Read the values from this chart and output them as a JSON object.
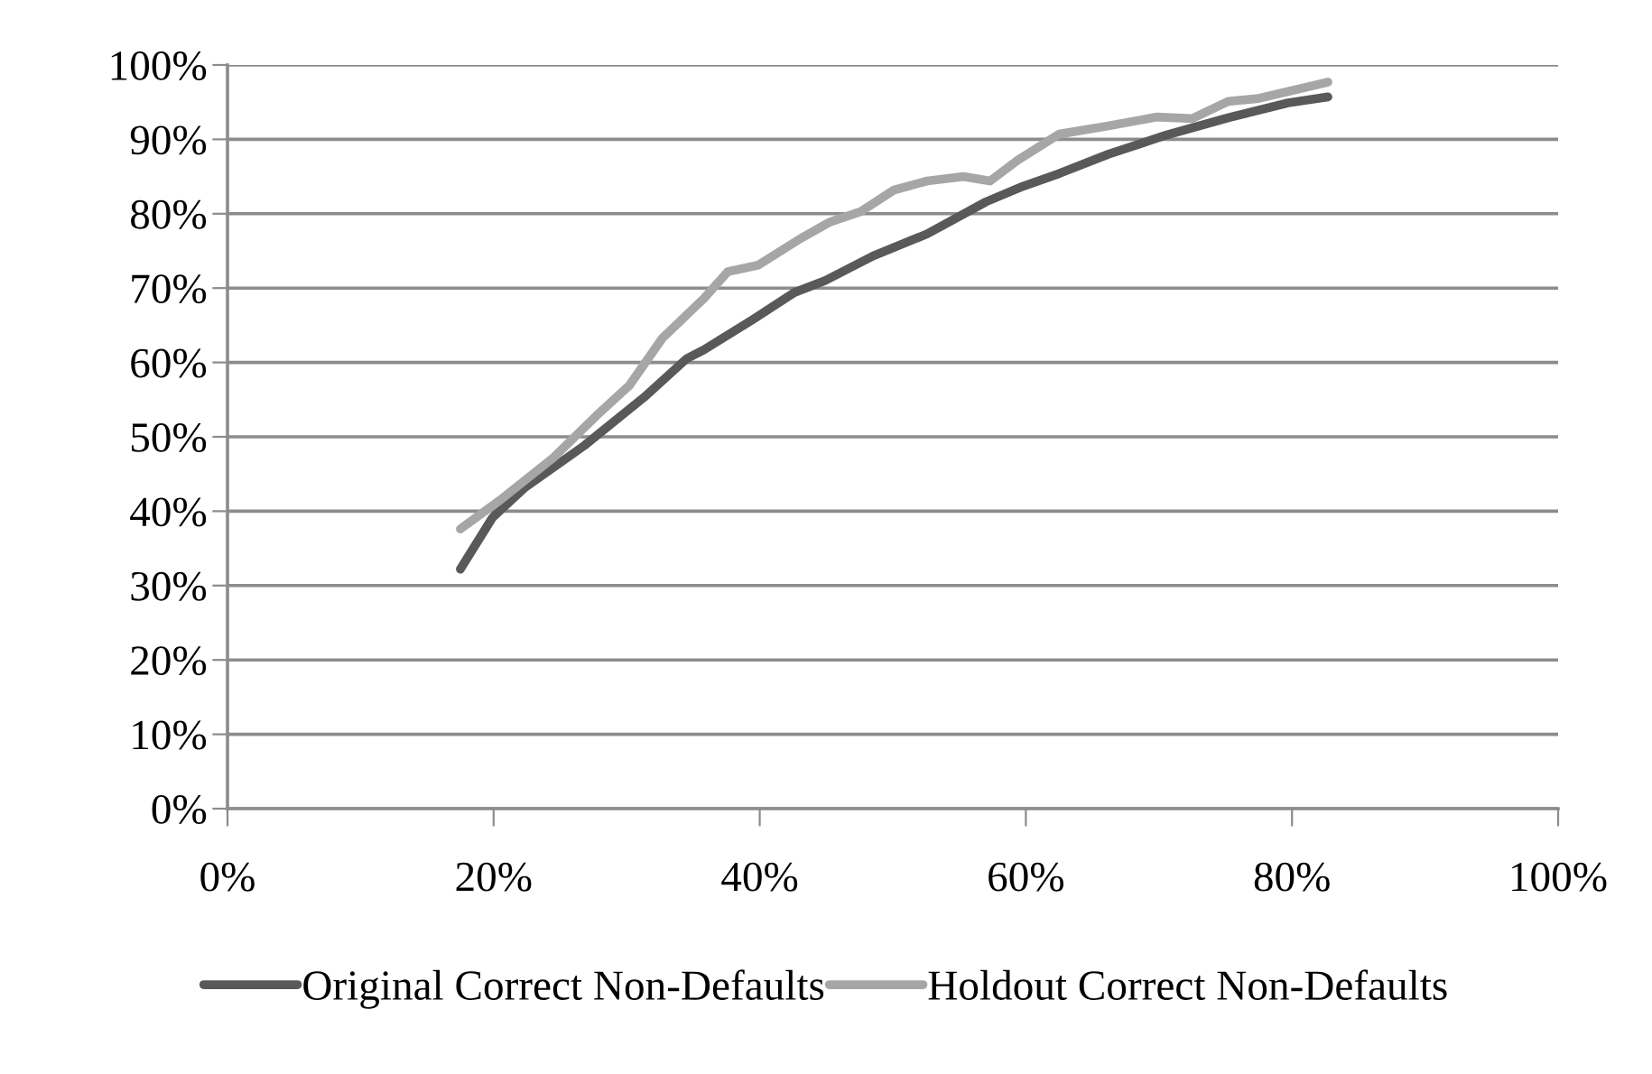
{
  "chart_data": {
    "type": "line",
    "line_style": "solid",
    "marker": "none",
    "grid": "y",
    "legend": "bottom",
    "xlim": [
      0,
      100
    ],
    "xticks": [
      {
        "value": 0,
        "label": "0%"
      },
      {
        "value": 20,
        "label": "20%"
      },
      {
        "value": 40,
        "label": "40%"
      },
      {
        "value": 60,
        "label": "60%"
      },
      {
        "value": 80,
        "label": "80%"
      },
      {
        "value": 100,
        "label": "100%"
      }
    ],
    "ylim": [
      0,
      100
    ],
    "yticks": [
      {
        "value": 0,
        "label": "0%"
      },
      {
        "value": 10,
        "label": "10%"
      },
      {
        "value": 20,
        "label": "20%"
      },
      {
        "value": 30,
        "label": "30%"
      },
      {
        "value": 40,
        "label": "40%"
      },
      {
        "value": 50,
        "label": "50%"
      },
      {
        "value": 60,
        "label": "60%"
      },
      {
        "value": 70,
        "label": "70%"
      },
      {
        "value": 80,
        "label": "80%"
      },
      {
        "value": 90,
        "label": "90%"
      },
      {
        "value": 100,
        "label": "100%"
      }
    ],
    "series": [
      {
        "name": "Original Correct Non-Defaults",
        "color": "#595959",
        "x": [
          17.5,
          19.9,
          22.3,
          26.8,
          31.3,
          34.5,
          35.8,
          39.5,
          42.6,
          44.9,
          48.5,
          52.6,
          57.0,
          59.8,
          62.5,
          66.2,
          70.6,
          75.2,
          79.7,
          82.7
        ],
        "values": [
          32.2,
          39.1,
          43.1,
          48.8,
          55.3,
          60.5,
          61.7,
          65.8,
          69.4,
          71.0,
          74.3,
          77.3,
          81.6,
          83.7,
          85.4,
          88.0,
          90.6,
          92.9,
          94.9,
          95.7
        ]
      },
      {
        "name": "Holdout Correct Non-Defaults",
        "color": "#a6a6a6",
        "x": [
          17.5,
          20.5,
          24.5,
          27.7,
          30.2,
          32.7,
          35.8,
          37.6,
          39.9,
          43.1,
          45.3,
          47.6,
          50.1,
          52.6,
          55.3,
          57.3,
          59.4,
          62.5,
          66.2,
          69.8,
          72.5,
          75.2,
          77.5,
          82.7
        ],
        "values": [
          37.6,
          41.5,
          47.2,
          52.8,
          56.9,
          63.3,
          68.6,
          72.2,
          73.1,
          76.7,
          78.9,
          80.3,
          83.2,
          84.4,
          85.0,
          84.4,
          87.2,
          90.7,
          91.8,
          93.0,
          92.8,
          95.1,
          95.5,
          97.7
        ]
      }
    ]
  }
}
